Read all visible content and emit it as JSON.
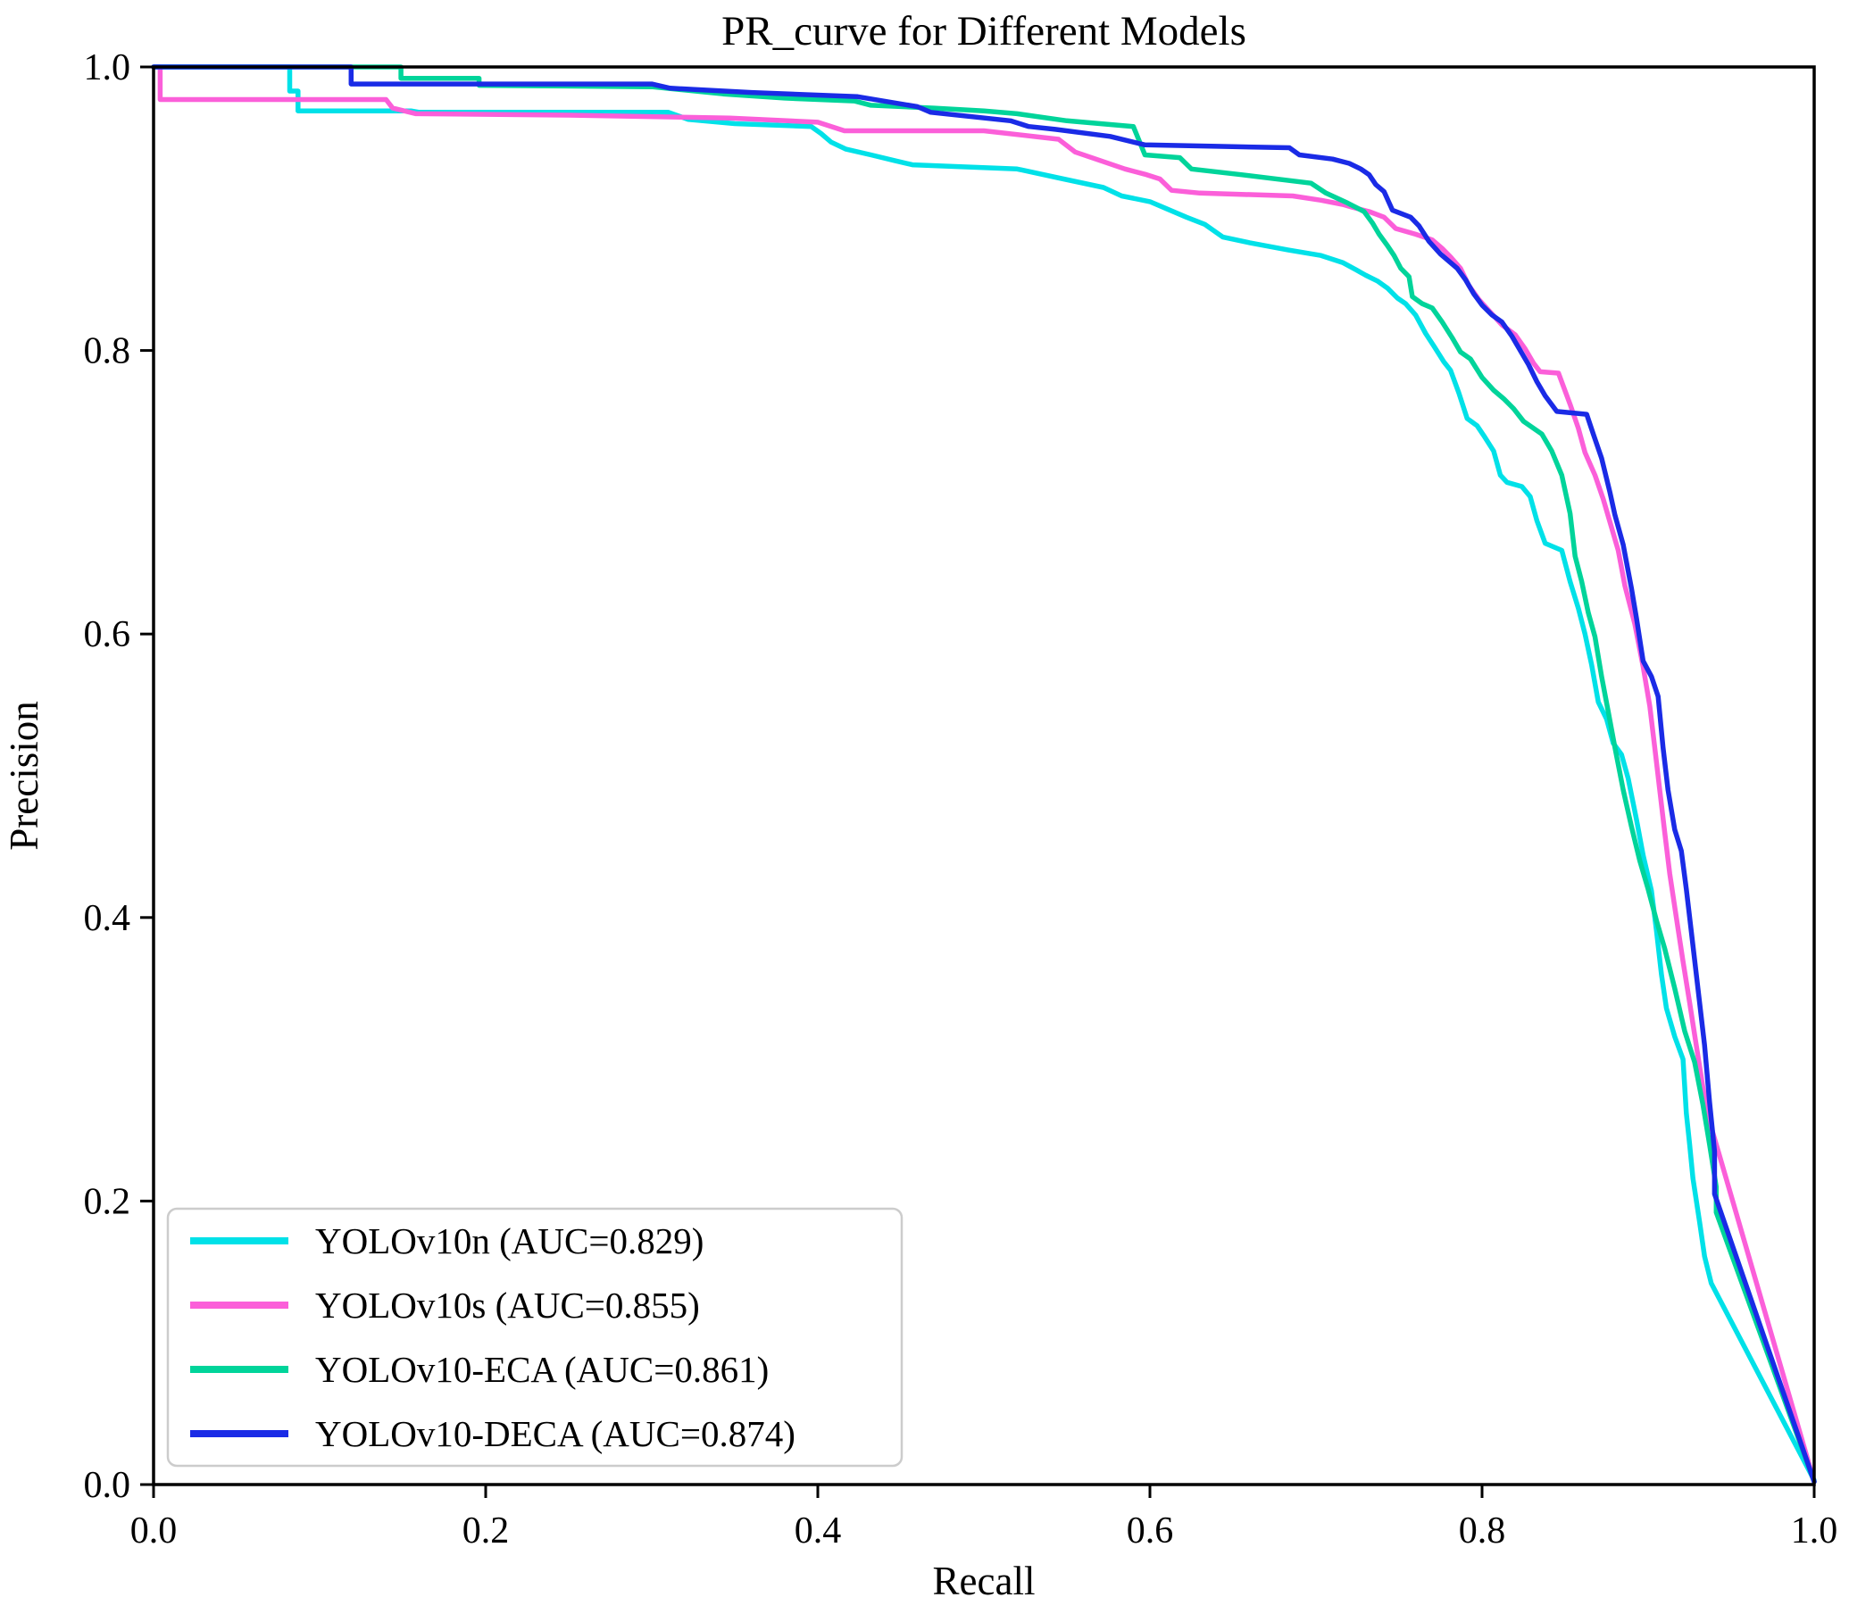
{
  "chart_data": {
    "type": "line",
    "title": "PR_curve for Different Models",
    "xlabel": "Recall",
    "ylabel": "Precision",
    "xlim": [
      0.0,
      1.0
    ],
    "ylim": [
      0.0,
      1.0
    ],
    "grid": false,
    "x_ticks": {
      "values": [
        0.0,
        0.2,
        0.4,
        0.6,
        0.8,
        1.0
      ],
      "labels": [
        "0.0",
        "0.2",
        "0.4",
        "0.6",
        "0.8",
        "1.0"
      ]
    },
    "y_ticks": {
      "values": [
        0.0,
        0.2,
        0.4,
        0.6,
        0.8,
        1.0
      ],
      "labels": [
        "0.0",
        "0.2",
        "0.4",
        "0.6",
        "0.8",
        "1.0"
      ]
    },
    "legend": {
      "position": "lower-left",
      "background": "#ffffff",
      "border_color": "#cccccc"
    },
    "series": [
      {
        "name": "YOLOv10n",
        "label": "YOLOv10n (AUC=0.829)",
        "auc": 0.829,
        "color": "#00E1E8",
        "points": [
          [
            0.0,
            1.0
          ],
          [
            0.082,
            1.0
          ],
          [
            0.082,
            0.983
          ],
          [
            0.087,
            0.983
          ],
          [
            0.087,
            0.969
          ],
          [
            0.155,
            0.969
          ],
          [
            0.16,
            0.968
          ],
          [
            0.31,
            0.968
          ],
          [
            0.322,
            0.963
          ],
          [
            0.35,
            0.96
          ],
          [
            0.396,
            0.958
          ],
          [
            0.402,
            0.953
          ],
          [
            0.408,
            0.947
          ],
          [
            0.417,
            0.942
          ],
          [
            0.432,
            0.938
          ],
          [
            0.446,
            0.934
          ],
          [
            0.457,
            0.931
          ],
          [
            0.52,
            0.928
          ],
          [
            0.548,
            0.921
          ],
          [
            0.572,
            0.915
          ],
          [
            0.583,
            0.909
          ],
          [
            0.6,
            0.905
          ],
          [
            0.61,
            0.9
          ],
          [
            0.622,
            0.894
          ],
          [
            0.633,
            0.889
          ],
          [
            0.644,
            0.88
          ],
          [
            0.66,
            0.876
          ],
          [
            0.683,
            0.871
          ],
          [
            0.703,
            0.867
          ],
          [
            0.716,
            0.862
          ],
          [
            0.724,
            0.857
          ],
          [
            0.73,
            0.853
          ],
          [
            0.737,
            0.849
          ],
          [
            0.743,
            0.844
          ],
          [
            0.749,
            0.837
          ],
          [
            0.754,
            0.833
          ],
          [
            0.76,
            0.825
          ],
          [
            0.766,
            0.812
          ],
          [
            0.771,
            0.803
          ],
          [
            0.777,
            0.792
          ],
          [
            0.781,
            0.786
          ],
          [
            0.786,
            0.77
          ],
          [
            0.791,
            0.752
          ],
          [
            0.797,
            0.747
          ],
          [
            0.801,
            0.74
          ],
          [
            0.807,
            0.729
          ],
          [
            0.811,
            0.712
          ],
          [
            0.815,
            0.707
          ],
          [
            0.824,
            0.704
          ],
          [
            0.829,
            0.697
          ],
          [
            0.833,
            0.68
          ],
          [
            0.838,
            0.664
          ],
          [
            0.848,
            0.659
          ],
          [
            0.853,
            0.637
          ],
          [
            0.858,
            0.618
          ],
          [
            0.862,
            0.6
          ],
          [
            0.866,
            0.578
          ],
          [
            0.87,
            0.552
          ],
          [
            0.875,
            0.54
          ],
          [
            0.879,
            0.523
          ],
          [
            0.884,
            0.515
          ],
          [
            0.888,
            0.498
          ],
          [
            0.893,
            0.469
          ],
          [
            0.897,
            0.444
          ],
          [
            0.902,
            0.419
          ],
          [
            0.905,
            0.391
          ],
          [
            0.908,
            0.36
          ],
          [
            0.911,
            0.336
          ],
          [
            0.916,
            0.316
          ],
          [
            0.921,
            0.3
          ],
          [
            0.923,
            0.262
          ],
          [
            0.925,
            0.24
          ],
          [
            0.927,
            0.216
          ],
          [
            0.931,
            0.185
          ],
          [
            0.934,
            0.161
          ],
          [
            0.938,
            0.142
          ],
          [
            1.0,
            0.003
          ]
        ]
      },
      {
        "name": "YOLOv10s",
        "label": "YOLOv10s (AUC=0.855)",
        "auc": 0.855,
        "color": "#FB5FD9",
        "points": [
          [
            0.0,
            1.0
          ],
          [
            0.004,
            1.0
          ],
          [
            0.004,
            0.977
          ],
          [
            0.14,
            0.977
          ],
          [
            0.144,
            0.971
          ],
          [
            0.158,
            0.967
          ],
          [
            0.25,
            0.966
          ],
          [
            0.347,
            0.964
          ],
          [
            0.4,
            0.961
          ],
          [
            0.416,
            0.955
          ],
          [
            0.5,
            0.955
          ],
          [
            0.545,
            0.949
          ],
          [
            0.555,
            0.94
          ],
          [
            0.57,
            0.934
          ],
          [
            0.585,
            0.928
          ],
          [
            0.598,
            0.924
          ],
          [
            0.606,
            0.921
          ],
          [
            0.613,
            0.913
          ],
          [
            0.63,
            0.911
          ],
          [
            0.686,
            0.909
          ],
          [
            0.703,
            0.906
          ],
          [
            0.716,
            0.903
          ],
          [
            0.722,
            0.901
          ],
          [
            0.732,
            0.898
          ],
          [
            0.741,
            0.894
          ],
          [
            0.748,
            0.886
          ],
          [
            0.76,
            0.882
          ],
          [
            0.77,
            0.878
          ],
          [
            0.776,
            0.872
          ],
          [
            0.781,
            0.866
          ],
          [
            0.787,
            0.858
          ],
          [
            0.792,
            0.846
          ],
          [
            0.798,
            0.836
          ],
          [
            0.805,
            0.827
          ],
          [
            0.812,
            0.818
          ],
          [
            0.82,
            0.811
          ],
          [
            0.826,
            0.801
          ],
          [
            0.831,
            0.791
          ],
          [
            0.835,
            0.785
          ],
          [
            0.846,
            0.784
          ],
          [
            0.853,
            0.762
          ],
          [
            0.858,
            0.745
          ],
          [
            0.862,
            0.728
          ],
          [
            0.868,
            0.712
          ],
          [
            0.873,
            0.695
          ],
          [
            0.877,
            0.679
          ],
          [
            0.882,
            0.659
          ],
          [
            0.886,
            0.634
          ],
          [
            0.892,
            0.607
          ],
          [
            0.897,
            0.577
          ],
          [
            0.901,
            0.549
          ],
          [
            0.904,
            0.52
          ],
          [
            0.907,
            0.49
          ],
          [
            0.91,
            0.46
          ],
          [
            0.913,
            0.431
          ],
          [
            0.917,
            0.4
          ],
          [
            0.921,
            0.369
          ],
          [
            0.925,
            0.34
          ],
          [
            0.929,
            0.31
          ],
          [
            0.933,
            0.28
          ],
          [
            0.938,
            0.252
          ],
          [
            0.943,
            0.232
          ],
          [
            1.0,
            0.002
          ]
        ]
      },
      {
        "name": "YOLOv10-ECA",
        "label": "YOLOv10-ECA (AUC=0.861)",
        "auc": 0.861,
        "color": "#00D49A",
        "points": [
          [
            0.0,
            1.0
          ],
          [
            0.149,
            1.0
          ],
          [
            0.149,
            0.992
          ],
          [
            0.196,
            0.992
          ],
          [
            0.196,
            0.987
          ],
          [
            0.3,
            0.986
          ],
          [
            0.343,
            0.981
          ],
          [
            0.38,
            0.978
          ],
          [
            0.422,
            0.976
          ],
          [
            0.432,
            0.973
          ],
          [
            0.47,
            0.971
          ],
          [
            0.5,
            0.969
          ],
          [
            0.52,
            0.967
          ],
          [
            0.55,
            0.962
          ],
          [
            0.59,
            0.958
          ],
          [
            0.597,
            0.938
          ],
          [
            0.618,
            0.936
          ],
          [
            0.625,
            0.928
          ],
          [
            0.655,
            0.924
          ],
          [
            0.697,
            0.918
          ],
          [
            0.706,
            0.911
          ],
          [
            0.719,
            0.904
          ],
          [
            0.729,
            0.898
          ],
          [
            0.734,
            0.89
          ],
          [
            0.738,
            0.882
          ],
          [
            0.743,
            0.874
          ],
          [
            0.747,
            0.867
          ],
          [
            0.751,
            0.858
          ],
          [
            0.756,
            0.852
          ],
          [
            0.758,
            0.838
          ],
          [
            0.764,
            0.833
          ],
          [
            0.77,
            0.83
          ],
          [
            0.776,
            0.82
          ],
          [
            0.782,
            0.809
          ],
          [
            0.787,
            0.799
          ],
          [
            0.793,
            0.794
          ],
          [
            0.8,
            0.781
          ],
          [
            0.807,
            0.772
          ],
          [
            0.813,
            0.766
          ],
          [
            0.819,
            0.759
          ],
          [
            0.825,
            0.75
          ],
          [
            0.836,
            0.741
          ],
          [
            0.842,
            0.729
          ],
          [
            0.848,
            0.712
          ],
          [
            0.853,
            0.685
          ],
          [
            0.856,
            0.655
          ],
          [
            0.86,
            0.637
          ],
          [
            0.864,
            0.615
          ],
          [
            0.868,
            0.598
          ],
          [
            0.872,
            0.57
          ],
          [
            0.876,
            0.545
          ],
          [
            0.88,
            0.52
          ],
          [
            0.885,
            0.49
          ],
          [
            0.89,
            0.464
          ],
          [
            0.895,
            0.44
          ],
          [
            0.9,
            0.42
          ],
          [
            0.905,
            0.398
          ],
          [
            0.91,
            0.378
          ],
          [
            0.916,
            0.35
          ],
          [
            0.922,
            0.32
          ],
          [
            0.928,
            0.298
          ],
          [
            0.933,
            0.268
          ],
          [
            0.937,
            0.24
          ],
          [
            0.941,
            0.21
          ],
          [
            0.941,
            0.192
          ],
          [
            1.0,
            0.002
          ]
        ]
      },
      {
        "name": "YOLOv10-DECA",
        "label": "YOLOv10-DECA (AUC=0.874)",
        "auc": 0.874,
        "color": "#1A2BE6",
        "points": [
          [
            0.0,
            1.0
          ],
          [
            0.119,
            1.0
          ],
          [
            0.119,
            0.988
          ],
          [
            0.3,
            0.988
          ],
          [
            0.311,
            0.985
          ],
          [
            0.36,
            0.982
          ],
          [
            0.424,
            0.979
          ],
          [
            0.46,
            0.972
          ],
          [
            0.468,
            0.968
          ],
          [
            0.516,
            0.962
          ],
          [
            0.527,
            0.958
          ],
          [
            0.543,
            0.956
          ],
          [
            0.576,
            0.951
          ],
          [
            0.597,
            0.945
          ],
          [
            0.64,
            0.944
          ],
          [
            0.684,
            0.943
          ],
          [
            0.69,
            0.938
          ],
          [
            0.71,
            0.935
          ],
          [
            0.72,
            0.932
          ],
          [
            0.727,
            0.928
          ],
          [
            0.732,
            0.924
          ],
          [
            0.736,
            0.917
          ],
          [
            0.741,
            0.912
          ],
          [
            0.746,
            0.899
          ],
          [
            0.757,
            0.894
          ],
          [
            0.762,
            0.888
          ],
          [
            0.768,
            0.877
          ],
          [
            0.775,
            0.868
          ],
          [
            0.785,
            0.858
          ],
          [
            0.79,
            0.85
          ],
          [
            0.795,
            0.84
          ],
          [
            0.8,
            0.832
          ],
          [
            0.806,
            0.825
          ],
          [
            0.812,
            0.82
          ],
          [
            0.818,
            0.81
          ],
          [
            0.823,
            0.8
          ],
          [
            0.828,
            0.79
          ],
          [
            0.833,
            0.778
          ],
          [
            0.838,
            0.768
          ],
          [
            0.845,
            0.757
          ],
          [
            0.863,
            0.755
          ],
          [
            0.867,
            0.741
          ],
          [
            0.872,
            0.724
          ],
          [
            0.877,
            0.7
          ],
          [
            0.88,
            0.684
          ],
          [
            0.885,
            0.663
          ],
          [
            0.89,
            0.632
          ],
          [
            0.893,
            0.611
          ],
          [
            0.897,
            0.581
          ],
          [
            0.902,
            0.57
          ],
          [
            0.906,
            0.556
          ],
          [
            0.909,
            0.52
          ],
          [
            0.912,
            0.49
          ],
          [
            0.916,
            0.462
          ],
          [
            0.92,
            0.447
          ],
          [
            0.923,
            0.42
          ],
          [
            0.926,
            0.39
          ],
          [
            0.93,
            0.35
          ],
          [
            0.934,
            0.31
          ],
          [
            0.937,
            0.27
          ],
          [
            0.94,
            0.235
          ],
          [
            0.94,
            0.205
          ],
          [
            1.0,
            0.002
          ]
        ]
      }
    ]
  }
}
